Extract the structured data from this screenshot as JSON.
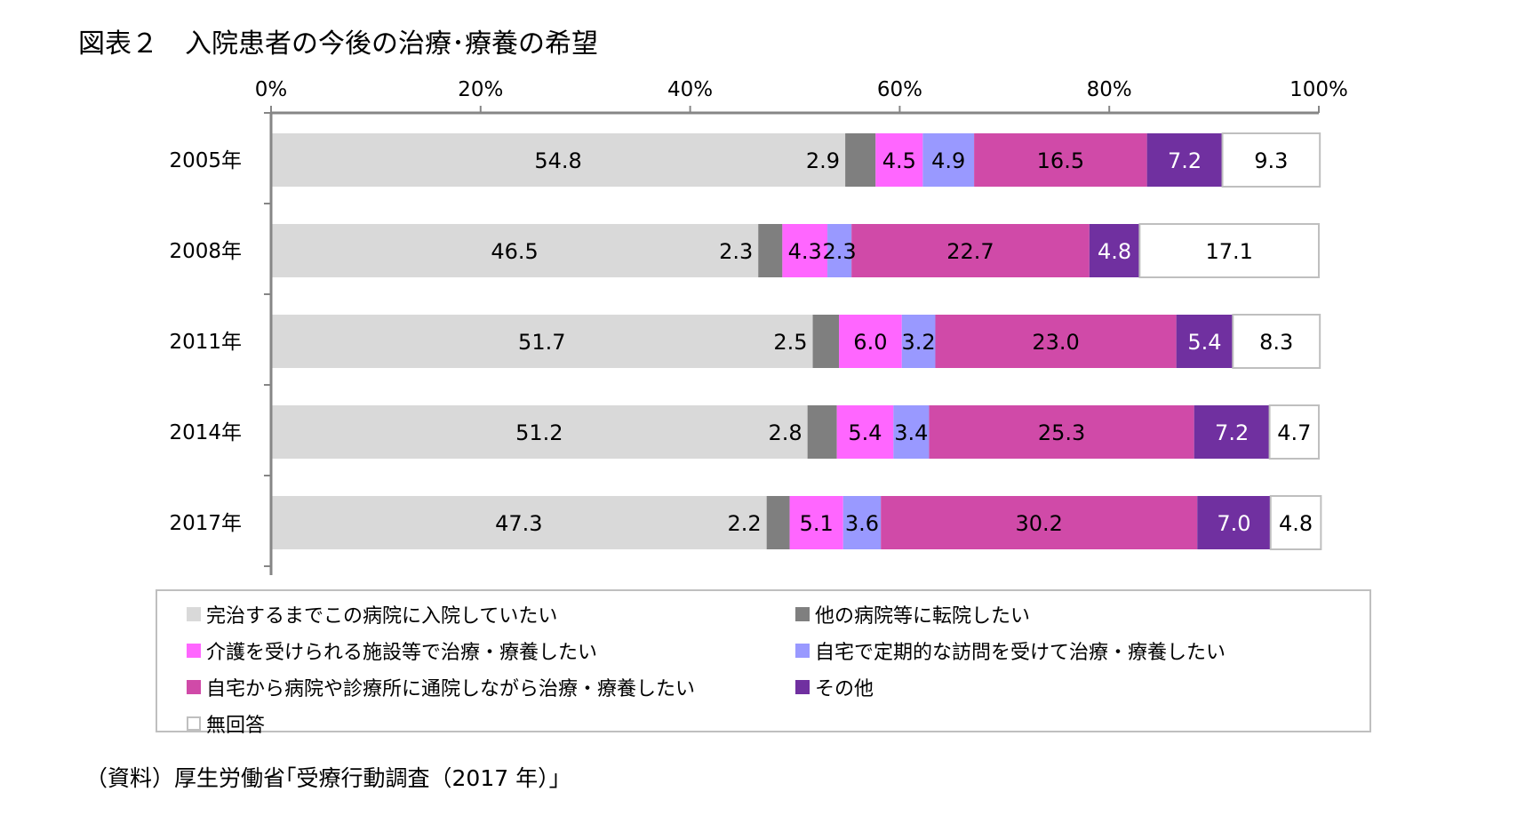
{
  "title": "図表２　入院患者の今後の治療･療養の希望",
  "source": "（資料）厚生労働省｢受療行動調査（2017 年）｣",
  "chart_data": {
    "type": "bar",
    "orientation": "horizontal",
    "stacked": true,
    "xlim": [
      0,
      100
    ],
    "x_ticks": [
      "0%",
      "20%",
      "40%",
      "60%",
      "80%",
      "100%"
    ],
    "x_tick_values": [
      0,
      20,
      40,
      60,
      80,
      100
    ],
    "x_axis_position": "top",
    "grid": false,
    "legend_position": "bottom",
    "categories": [
      "2005年",
      "2008年",
      "2011年",
      "2014年",
      "2017年"
    ],
    "series": [
      {
        "name": "完治するまでこの病院に入院していたい",
        "color": "#d9d9d9",
        "values": [
          54.8,
          46.5,
          51.7,
          51.2,
          47.3
        ]
      },
      {
        "name": "他の病院等に転院したい",
        "color": "#7f7f7f",
        "values": [
          2.9,
          2.3,
          2.5,
          2.8,
          2.2
        ]
      },
      {
        "name": "介護を受けられる施設等で治療・療養したい",
        "color": "#ff66ff",
        "values": [
          4.5,
          4.3,
          6.0,
          5.4,
          5.1
        ]
      },
      {
        "name": "自宅で定期的な訪問を受けて治療・療養したい",
        "color": "#9999ff",
        "values": [
          4.9,
          2.3,
          3.2,
          3.4,
          3.6
        ]
      },
      {
        "name": "自宅から病院や診療所に通院しながら治療・療養したい",
        "color": "#d04aa8",
        "values": [
          16.5,
          22.7,
          23.0,
          25.3,
          30.2
        ]
      },
      {
        "name": "その他",
        "color": "#7030a0",
        "values": [
          7.2,
          4.8,
          5.4,
          7.2,
          7.0
        ]
      },
      {
        "name": "無回答",
        "color": "#ffffff",
        "values": [
          9.3,
          17.1,
          8.3,
          4.7,
          4.8
        ]
      }
    ],
    "value_labels": [
      [
        "54.8",
        "2.9",
        "4.5",
        "4.9",
        "16.5",
        "7.2",
        "9.3"
      ],
      [
        "46.5",
        "2.3",
        "4.3",
        "2.3",
        "22.7",
        "4.8",
        "17.1"
      ],
      [
        "51.7",
        "2.5",
        "6.0",
        "3.2",
        "23.0",
        "5.4",
        "8.3"
      ],
      [
        "51.2",
        "2.8",
        "5.4",
        "3.4",
        "25.3",
        "7.2",
        "4.7"
      ],
      [
        "47.3",
        "2.2",
        "5.1",
        "3.6",
        "30.2",
        "7.0",
        "4.8"
      ]
    ]
  }
}
